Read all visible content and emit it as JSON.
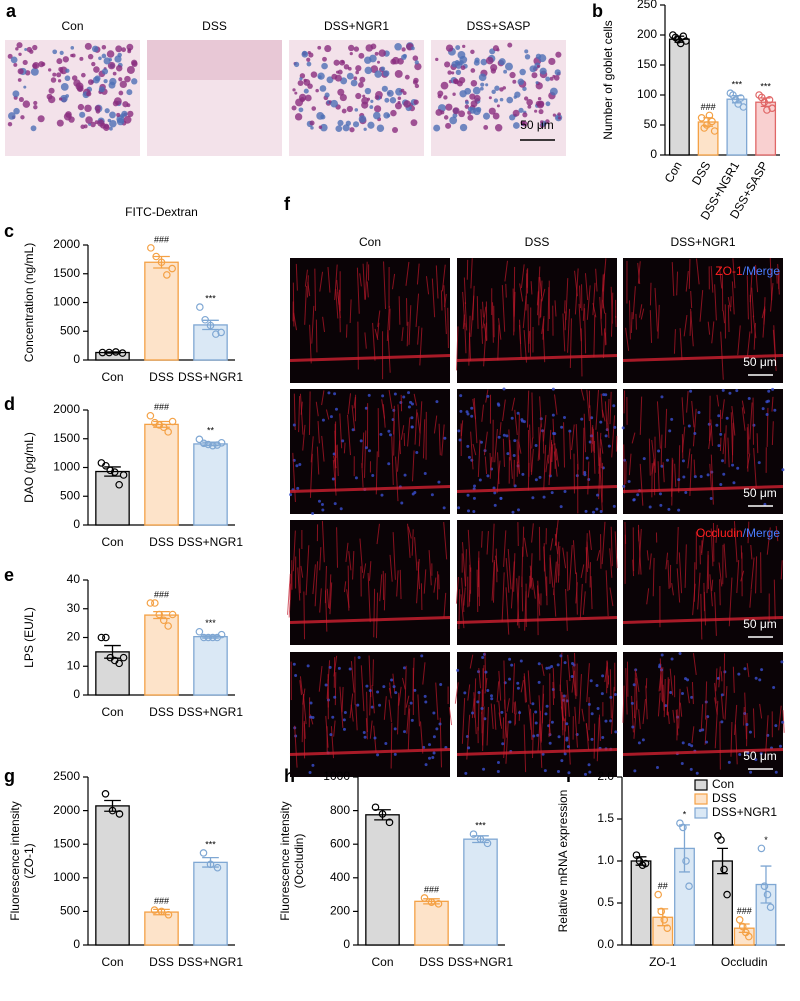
{
  "panel_labels": [
    "a",
    "b",
    "c",
    "d",
    "e",
    "f",
    "g",
    "h",
    "i"
  ],
  "image_a": {
    "labels": [
      "Con",
      "DSS",
      "DSS+NGR1",
      "DSS+SASP"
    ],
    "scale_bar": "50 μm"
  },
  "image_f": {
    "labels": [
      "Con",
      "DSS",
      "DSS+NGR1"
    ],
    "stain_zo1": [
      "ZO-1",
      "/Merge"
    ],
    "stain_occludin": [
      "Occludin",
      "/Merge"
    ],
    "scale_bar": "50 μm"
  },
  "chart_data": [
    {
      "type": "bar",
      "ylabel": "Number of goblet cells",
      "categories": [
        "Con",
        "DSS",
        "DSS+NGR1",
        "DSS+SASP"
      ],
      "values": [
        193,
        55,
        93,
        88
      ],
      "errors": [
        5,
        7,
        6,
        7
      ],
      "points": [
        [
          200,
          196,
          192,
          186,
          198,
          190
        ],
        [
          62,
          45,
          50,
          66,
          56,
          40
        ],
        [
          103,
          100,
          92,
          85,
          95,
          80
        ],
        [
          100,
          96,
          88,
          75,
          92,
          78
        ]
      ],
      "annotations": [
        null,
        "###",
        "***",
        "***"
      ],
      "colors": [
        "#d9d9d9",
        "#fde3c9",
        "#dae8f5",
        "#f9d0d0"
      ],
      "edge_colors": [
        "#000000",
        "#f4a145",
        "#7fa7d3",
        "#e06666"
      ],
      "ylim": [
        0,
        250
      ],
      "yticks": [
        0,
        50,
        100,
        150,
        200,
        250
      ]
    },
    {
      "type": "bar",
      "title": "FITC-Dextran",
      "ylabel": "Concentration (ng/mL)",
      "categories": [
        "Con",
        "DSS",
        "DSS+NGR1"
      ],
      "values": [
        130,
        1700,
        610
      ],
      "errors": [
        10,
        100,
        80
      ],
      "points": [
        [
          130,
          130,
          140,
          120
        ],
        [
          1950,
          1800,
          1700,
          1480,
          1590
        ],
        [
          920,
          700,
          600,
          450,
          480
        ]
      ],
      "annotations": [
        null,
        "###",
        "***"
      ],
      "colors": [
        "#d9d9d9",
        "#fde3c9",
        "#dae8f5"
      ],
      "edge_colors": [
        "#000000",
        "#f4a145",
        "#7fa7d3"
      ],
      "ylim": [
        0,
        2000
      ],
      "yticks": [
        0,
        500,
        1000,
        1500,
        2000
      ]
    },
    {
      "type": "bar",
      "ylabel": "DAO (pg/mL)",
      "categories": [
        "Con",
        "DSS",
        "DSS+NGR1"
      ],
      "values": [
        930,
        1750,
        1410
      ],
      "errors": [
        80,
        50,
        30
      ],
      "points": [
        [
          1080,
          1030,
          950,
          920,
          700,
          870
        ],
        [
          1900,
          1780,
          1740,
          1700,
          1620,
          1800
        ],
        [
          1490,
          1420,
          1400,
          1380,
          1390,
          1430
        ]
      ],
      "annotations": [
        null,
        "###",
        "**"
      ],
      "colors": [
        "#d9d9d9",
        "#fde3c9",
        "#dae8f5"
      ],
      "edge_colors": [
        "#000000",
        "#f4a145",
        "#7fa7d3"
      ],
      "ylim": [
        0,
        2000
      ],
      "yticks": [
        0,
        500,
        1000,
        1500,
        2000
      ]
    },
    {
      "type": "bar",
      "ylabel": "LPS (EU/L)",
      "categories": [
        "Con",
        "DSS",
        "DSS+NGR1"
      ],
      "values": [
        15,
        27.8,
        20.3
      ],
      "errors": [
        2.2,
        1.2,
        0.5
      ],
      "points": [
        [
          20,
          20,
          13,
          12,
          11,
          13
        ],
        [
          32,
          32,
          28,
          26,
          24,
          28
        ],
        [
          22,
          20,
          20,
          20,
          20,
          21
        ]
      ],
      "annotations": [
        null,
        "###",
        "***"
      ],
      "colors": [
        "#d9d9d9",
        "#fde3c9",
        "#dae8f5"
      ],
      "edge_colors": [
        "#000000",
        "#f4a145",
        "#7fa7d3"
      ],
      "ylim": [
        0,
        40
      ],
      "yticks": [
        0,
        10,
        20,
        30,
        40
      ]
    },
    {
      "type": "bar",
      "ylabel": [
        "Fluorescence intensity",
        "(ZO-1)"
      ],
      "categories": [
        "Con",
        "DSS",
        "DSS+NGR1"
      ],
      "values": [
        2070,
        490,
        1230
      ],
      "errors": [
        80,
        40,
        70
      ],
      "points": [
        [
          2250,
          2000,
          1950
        ],
        [
          520,
          500,
          450
        ],
        [
          1370,
          1200,
          1150
        ]
      ],
      "annotations": [
        null,
        "###",
        "***"
      ],
      "colors": [
        "#d9d9d9",
        "#fde3c9",
        "#dae8f5"
      ],
      "edge_colors": [
        "#000000",
        "#f4a145",
        "#7fa7d3"
      ],
      "ylim": [
        0,
        2500
      ],
      "yticks": [
        0,
        500,
        1000,
        1500,
        2000,
        2500
      ]
    },
    {
      "type": "bar",
      "ylabel": [
        "Fluorescence intensity",
        "(Occludin)"
      ],
      "categories": [
        "Con",
        "DSS",
        "DSS+NGR1"
      ],
      "values": [
        775,
        260,
        630
      ],
      "errors": [
        30,
        15,
        20
      ],
      "points": [
        [
          820,
          780,
          730
        ],
        [
          280,
          255,
          245
        ],
        [
          660,
          630,
          605
        ]
      ],
      "annotations": [
        null,
        "###",
        "***"
      ],
      "colors": [
        "#d9d9d9",
        "#fde3c9",
        "#dae8f5"
      ],
      "edge_colors": [
        "#000000",
        "#f4a145",
        "#7fa7d3"
      ],
      "ylim": [
        0,
        1000
      ],
      "yticks": [
        0,
        200,
        400,
        600,
        800,
        1000
      ]
    },
    {
      "type": "groupedbar",
      "ylabel": "Relative mRNA expression",
      "categories": [
        "ZO-1",
        "Occludin"
      ],
      "series": [
        {
          "name": "Con",
          "color": "#d9d9d9",
          "edge_color": "#000000",
          "values": [
            1.0,
            1.0
          ],
          "errors": [
            0.05,
            0.15
          ],
          "points": [
            [
              1.07,
              1.0,
              0.95,
              0.97
            ],
            [
              1.3,
              1.25,
              0.9,
              0.6
            ]
          ],
          "annotations": [
            null,
            null
          ]
        },
        {
          "name": "DSS",
          "color": "#fde3c9",
          "edge_color": "#f4a145",
          "values": [
            0.33,
            0.2
          ],
          "errors": [
            0.1,
            0.05
          ],
          "points": [
            [
              0.6,
              0.4,
              0.3,
              0.2
            ],
            [
              0.3,
              0.22,
              0.15,
              0.1
            ]
          ],
          "annotations": [
            "##",
            "###"
          ]
        },
        {
          "name": "DSS+NGR1",
          "color": "#dae8f5",
          "edge_color": "#7fa7d3",
          "values": [
            1.15,
            0.72
          ],
          "errors": [
            0.28,
            0.22
          ],
          "points": [
            [
              1.45,
              1.4,
              1.0,
              0.7
            ],
            [
              1.15,
              0.7,
              0.6,
              0.45
            ]
          ],
          "annotations": [
            "*",
            "*"
          ]
        }
      ],
      "legend": "top-right",
      "ylim": [
        0,
        2.0
      ],
      "yticks": [
        {
          "value": 0,
          "label": "0.0"
        },
        0.5,
        {
          "value": 1,
          "label": "1.0"
        },
        1.5,
        {
          "value": 2,
          "label": "2.0"
        }
      ]
    }
  ]
}
